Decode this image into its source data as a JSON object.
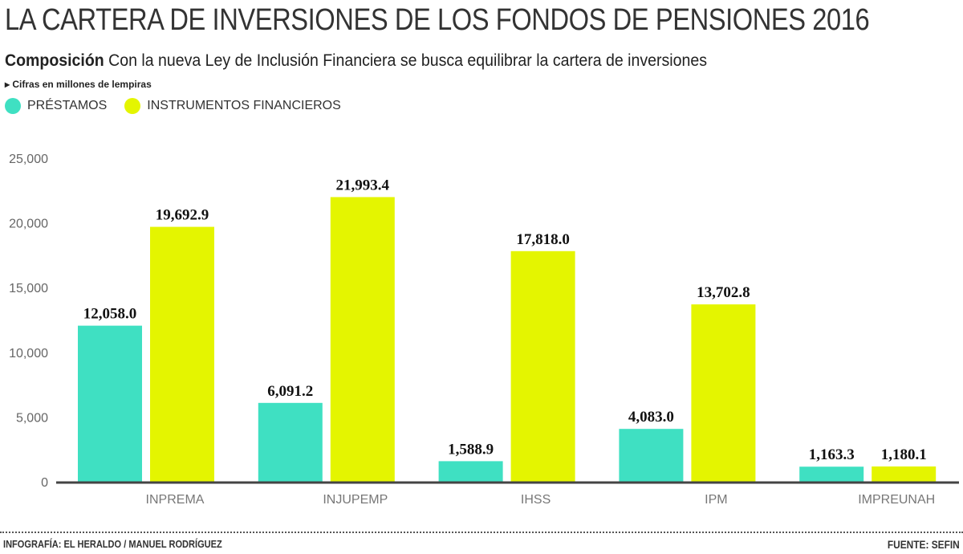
{
  "header": {
    "title": "LA CARTERA DE INVERSIONES DE LOS FONDOS DE PENSIONES 2016",
    "subtitle_bold": "Composición",
    "subtitle": "Con la nueva Ley de Inclusión Financiera se busca equilibrar la cartera de inversiones",
    "note": "▸ Cifras en millones de lempiras"
  },
  "footer": {
    "credit": "INFOGRAFÍA: EL HERALDO / MANUEL RODRÍGUEZ",
    "source": "FUENTE: SEFIN"
  },
  "chart_data": {
    "type": "bar",
    "title": "LA CARTERA DE INVERSIONES DE LOS FONDOS DE PENSIONES 2016",
    "categories": [
      "INPREMA",
      "INJUPEMP",
      "IHSS",
      "IPM",
      "IMPREUNAH"
    ],
    "series": [
      {
        "name": "PRÉSTAMOS",
        "color": "#3fe0c2",
        "values": [
          12058.0,
          6091.2,
          1588.9,
          4083.0,
          1163.3
        ],
        "labels": [
          "12,058.0",
          "6,091.2",
          "1,588.9",
          "4,083.0",
          "1,163.3"
        ]
      },
      {
        "name": "INSTRUMENTOS FINANCIEROS",
        "color": "#e4f500",
        "values": [
          19692.9,
          21993.4,
          17818.0,
          13702.8,
          1180.1
        ],
        "labels": [
          "19,692.9",
          "21,993.4",
          "17,818.0",
          "13,702.8",
          "1,180.1"
        ]
      }
    ],
    "yticks": [
      "0",
      "5,000",
      "10,000",
      "15,000",
      "20,000",
      "25,000"
    ],
    "ytick_values": [
      0,
      5000,
      10000,
      15000,
      20000,
      25000
    ],
    "ylim": [
      0,
      25000
    ],
    "grid": false,
    "legend": "top-left"
  }
}
